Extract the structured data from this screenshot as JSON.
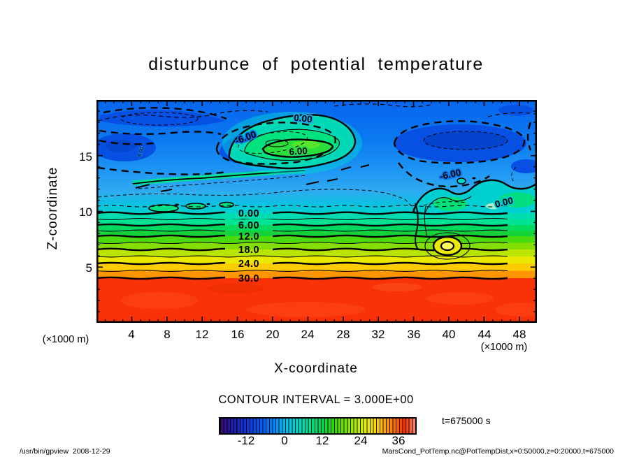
{
  "title": "disturbunce  of  potential  temperature",
  "axes": {
    "y_label": "Z-coordinate",
    "x_label": "X-coordinate",
    "y_ticks": [
      "15",
      "10",
      "5"
    ],
    "x_ticks": [
      "4",
      "8",
      "12",
      "16",
      "20",
      "24",
      "28",
      "32",
      "36",
      "40",
      "44",
      "48"
    ],
    "x_unit_left": "(×1000 m)",
    "x_unit_right": "(×1000 m)"
  },
  "contour_labels": {
    "band": [
      "0.00",
      "6.00",
      "12.0",
      "18.0",
      "24.0",
      "30.0"
    ],
    "upper_left_minus6": "-6.00",
    "top_zero": "0.00",
    "blob_six": "6.00",
    "right_minus6": "-6.00",
    "right_zero": "0.00",
    "tiny_left": "-6.00"
  },
  "legend": {
    "contour_interval": "CONTOUR INTERVAL = 3.000E+00",
    "colorbar_ticks": [
      "-12",
      "0",
      "12",
      "24",
      "36"
    ],
    "time_annotation": "t=675000 s"
  },
  "footer": {
    "left": "/usr/bin/gpview  2008-12-29",
    "right": "MarsCond_PotTemp.nc@PotTempDist,x=0:50000,z=0:20000,t=675000"
  },
  "chart_data": {
    "type": "heatmap",
    "subtype": "filled contour plot with line contours (tone + contour, gpview/DCL style)",
    "title": "disturbunce of potential temperature",
    "xlabel": "X-coordinate",
    "ylabel": "Z-coordinate",
    "axis_units": "×1000 m",
    "xlim": [
      0,
      50
    ],
    "ylim": [
      0,
      20
    ],
    "x_ticks": [
      4,
      8,
      12,
      16,
      20,
      24,
      28,
      32,
      36,
      40,
      44,
      48
    ],
    "y_ticks": [
      5,
      10,
      15
    ],
    "contour_interval": 3.0,
    "labeled_contour_levels": [
      -6,
      0,
      6,
      12,
      18,
      24,
      30
    ],
    "negative_contours_dashed": true,
    "time_annotation": "t=675000 s",
    "colorbar": {
      "position": "bottom",
      "ticks": [
        -12,
        0,
        12,
        24,
        36
      ],
      "approx_value_range": [
        -21,
        42
      ],
      "colors": [
        "#3A0D66",
        "#1133D6",
        "#0055F0",
        "#0090FF",
        "#00C0F0",
        "#00D8C0",
        "#00E090",
        "#00D850",
        "#20D810",
        "#A0E800",
        "#E0F000",
        "#FFD800",
        "#FFA000",
        "#FF6800",
        "#FF3000",
        "#FF8878"
      ]
    },
    "field_summary": {
      "lower_region": "Nearly flat horizontal contours; disturbance value rises toward the ground, exceeding +30 below z≈4 (solid red).",
      "contour_height_z_by_level": {
        "30": 4.0,
        "24": 5.3,
        "18": 6.6,
        "12": 7.8,
        "6": 8.8,
        "3": 9.4,
        "0": 9.9
      },
      "upper_region": "Negative disturbance (≈ -3 to -9, dashed contours, blue tones) above z≈10, with dark-blue minima pockets near x≈5 z≈16, x≈10-20 z≈16, x≈30-37 z≈16.",
      "positive_anomalies": [
        {
          "x_center": 21,
          "z_center": 15.5,
          "peak_level": "6 to 9",
          "note": "large green blob labeled 0.00 and 6.00"
        },
        {
          "x_center": 41,
          "z_center": 11,
          "peak_level": "0 to 6",
          "note": "cyan-green area labeled 0.00 near right side"
        },
        {
          "x_center": 40,
          "z_center": 6.9,
          "peak_level": "18-21 closed yellow eddy",
          "note": "small closed contour in yellow band"
        }
      ],
      "disturbance_column": "vertical pinch in contours near x≈36.5 between z≈4 and z≈12"
    }
  }
}
